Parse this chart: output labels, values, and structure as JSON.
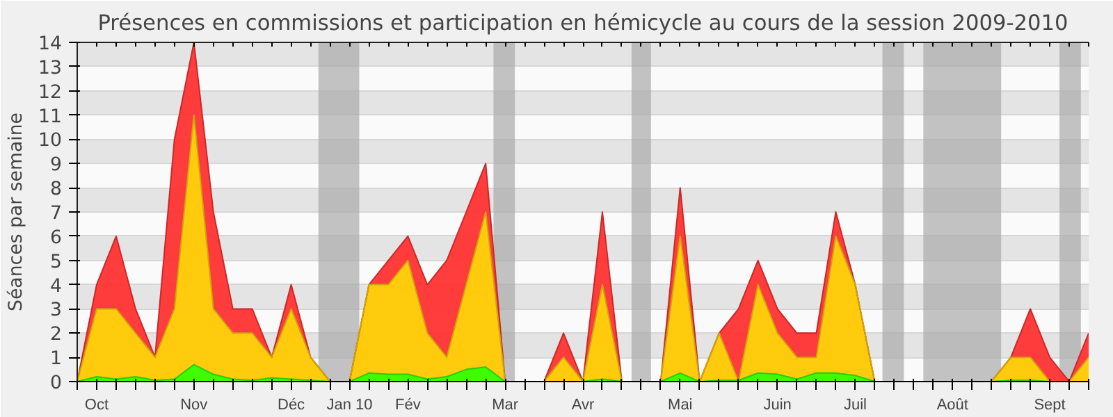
{
  "chart_data": {
    "type": "area",
    "title": "Présences en commissions et participation en hémicycle au cours de la session 2009-2010",
    "ylabel": "Séances par semaine",
    "categories": [
      null,
      "Oct",
      null,
      null,
      null,
      null,
      "Nov",
      null,
      null,
      null,
      null,
      "Déc",
      null,
      null,
      "Jan 10",
      null,
      null,
      "Fév",
      null,
      null,
      null,
      null,
      "Mar",
      null,
      null,
      null,
      "Avr",
      null,
      null,
      null,
      null,
      "Mai",
      null,
      null,
      null,
      null,
      "Juin",
      null,
      null,
      null,
      "Juil",
      null,
      null,
      null,
      null,
      "Août",
      null,
      null,
      null,
      null,
      "Sept",
      null,
      null
    ],
    "series": [
      {
        "color": "#ff3333",
        "values": [
          0,
          4,
          6,
          3,
          1,
          10,
          14,
          7,
          3,
          3,
          1,
          4,
          1,
          0,
          0,
          4,
          5,
          6,
          4,
          5,
          7,
          9,
          0,
          0,
          0,
          2,
          0,
          7,
          0,
          0,
          0,
          8,
          0,
          2,
          3,
          5,
          3,
          2,
          2,
          7,
          4,
          0,
          0,
          0,
          0,
          0,
          0,
          0,
          1,
          3,
          1,
          0,
          2
        ]
      },
      {
        "color": "#ffd30a",
        "values": [
          0,
          3,
          3,
          2,
          1,
          3,
          11,
          3,
          2,
          2,
          1,
          3,
          1,
          0,
          0,
          4,
          4,
          5,
          2,
          1,
          4,
          7,
          0,
          0,
          0,
          1,
          0,
          4,
          0,
          0,
          0,
          6,
          0,
          2,
          0,
          4,
          2,
          1,
          1,
          6,
          4,
          0,
          0,
          0,
          0,
          0,
          0,
          0,
          1,
          1,
          0,
          0,
          1
        ]
      },
      {
        "color": "#33ff00",
        "values": [
          0,
          0.2,
          0.1,
          0.2,
          0.05,
          0.1,
          0.7,
          0.3,
          0.1,
          0.05,
          0.15,
          0.1,
          0.05,
          0,
          0,
          0.35,
          0.3,
          0.3,
          0.1,
          0.2,
          0.5,
          0.6,
          0,
          0,
          0,
          0,
          0,
          0.1,
          0,
          0,
          0,
          0.35,
          0,
          0.05,
          0.05,
          0.35,
          0.3,
          0.1,
          0.35,
          0.35,
          0.25,
          0,
          0,
          0,
          0,
          0,
          0,
          0,
          0.05,
          0.05,
          0,
          0,
          0
        ]
      }
    ],
    "ylim": [
      0,
      14
    ],
    "yticks": [
      0,
      1,
      2,
      3,
      4,
      5,
      6,
      7,
      8,
      9,
      10,
      11,
      12,
      13,
      14
    ],
    "grid": "y"
  }
}
